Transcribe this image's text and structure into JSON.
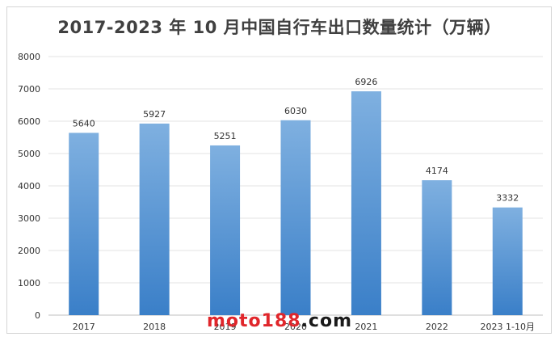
{
  "chart_data": {
    "type": "bar",
    "title": "2017-2023 年 10 月中国自行车出口数量统计（万辆）",
    "categories": [
      "2017",
      "2018",
      "2019",
      "2020",
      "2021",
      "2022",
      "2023 1-10月"
    ],
    "values": [
      5640,
      5927,
      5251,
      6030,
      6926,
      4174,
      3332
    ],
    "ylim": [
      0,
      8000
    ],
    "yticks": [
      0,
      1000,
      2000,
      3000,
      4000,
      5000,
      6000,
      7000,
      8000
    ],
    "grid": true,
    "legend": "none",
    "bar_color": "#5b9bd5"
  },
  "watermark": {
    "prefix": "moto188",
    "suffix": ".com"
  }
}
